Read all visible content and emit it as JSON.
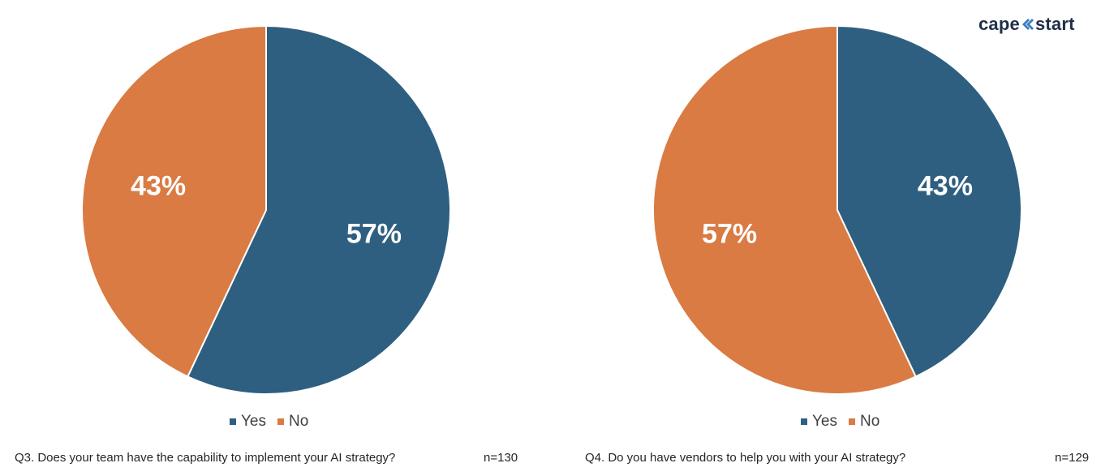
{
  "brand": {
    "logo_left": "cape",
    "logo_right": "start",
    "logo_color": "#1e3048",
    "logo_mark_color": "#3a7fc1"
  },
  "colors": {
    "yes": "#2e5f80",
    "no": "#d97b43"
  },
  "chart_data": [
    {
      "type": "pie",
      "question": "Q3. Does your team have the capability to implement your AI strategy?",
      "sample_size": "n=130",
      "categories": [
        "Yes",
        "No"
      ],
      "values": [
        57,
        43
      ],
      "data_labels": [
        "57%",
        "43%"
      ],
      "legend_position": "bottom"
    },
    {
      "type": "pie",
      "question": "Q4. Do you have vendors to help you with your AI strategy?",
      "sample_size": "n=129",
      "categories": [
        "Yes",
        "No"
      ],
      "values": [
        43,
        57
      ],
      "data_labels": [
        "43%",
        "57%"
      ],
      "legend_position": "bottom"
    }
  ]
}
